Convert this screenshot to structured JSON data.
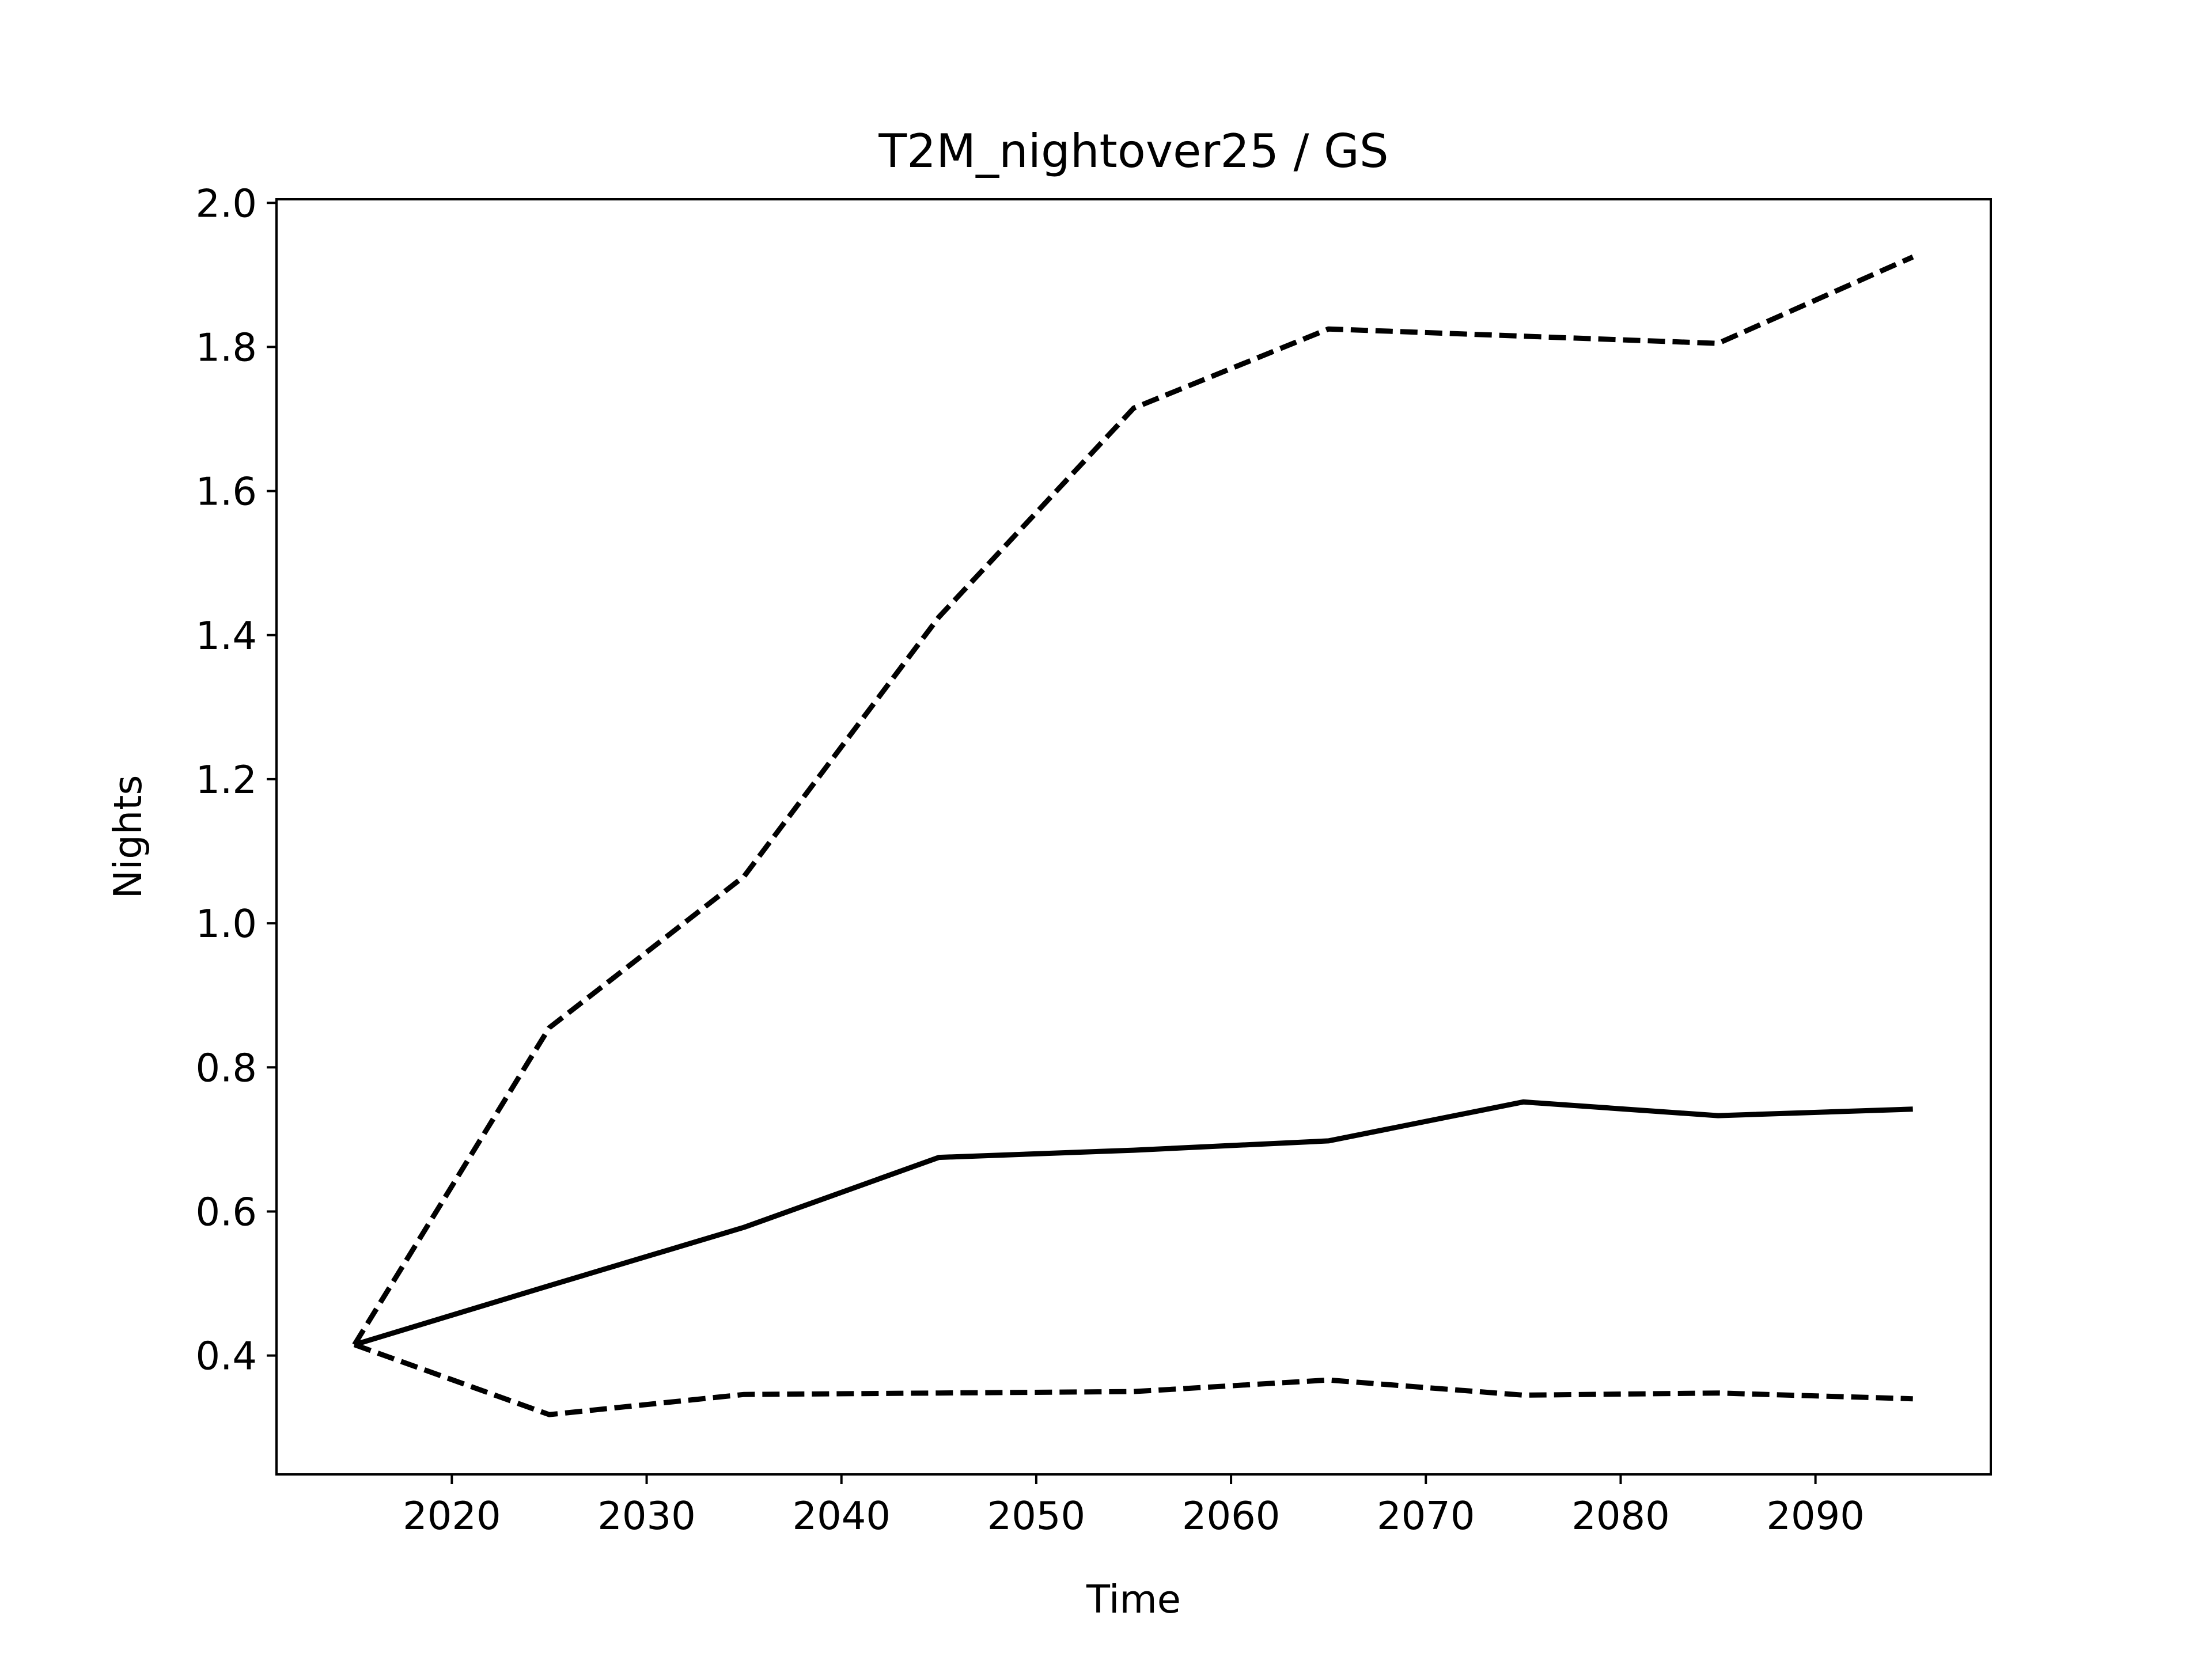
{
  "chart_data": {
    "type": "line",
    "title": "T2M_nightover25 / GS",
    "xlabel": "Time",
    "ylabel": "Nights",
    "xlim": [
      2011,
      2099
    ],
    "ylim": [
      0.235,
      2.005
    ],
    "xticks": [
      2020,
      2030,
      2040,
      2050,
      2060,
      2070,
      2080,
      2090
    ],
    "yticks": [
      0.4,
      0.6,
      0.8,
      1.0,
      1.2,
      1.4,
      1.6,
      1.8,
      2.0
    ],
    "ytick_labels": [
      "0.4",
      "0.6",
      "0.8",
      "1.0",
      "1.2",
      "1.4",
      "1.6",
      "1.8",
      "2.0"
    ],
    "grid": false,
    "legend": "none",
    "x": [
      2015,
      2025,
      2035,
      2045,
      2055,
      2065,
      2075,
      2085,
      2095
    ],
    "series": [
      {
        "style": "dashed",
        "color": "#000000",
        "values": [
          0.415,
          0.855,
          1.065,
          1.425,
          1.715,
          1.825,
          1.815,
          1.805,
          1.925
        ]
      },
      {
        "style": "solid",
        "color": "#000000",
        "values": [
          0.415,
          0.497,
          0.578,
          0.675,
          0.685,
          0.698,
          0.752,
          0.733,
          0.742
        ]
      },
      {
        "style": "dashed",
        "color": "#000000",
        "values": [
          0.415,
          0.318,
          0.346,
          0.348,
          0.35,
          0.366,
          0.345,
          0.348,
          0.34
        ]
      }
    ]
  }
}
